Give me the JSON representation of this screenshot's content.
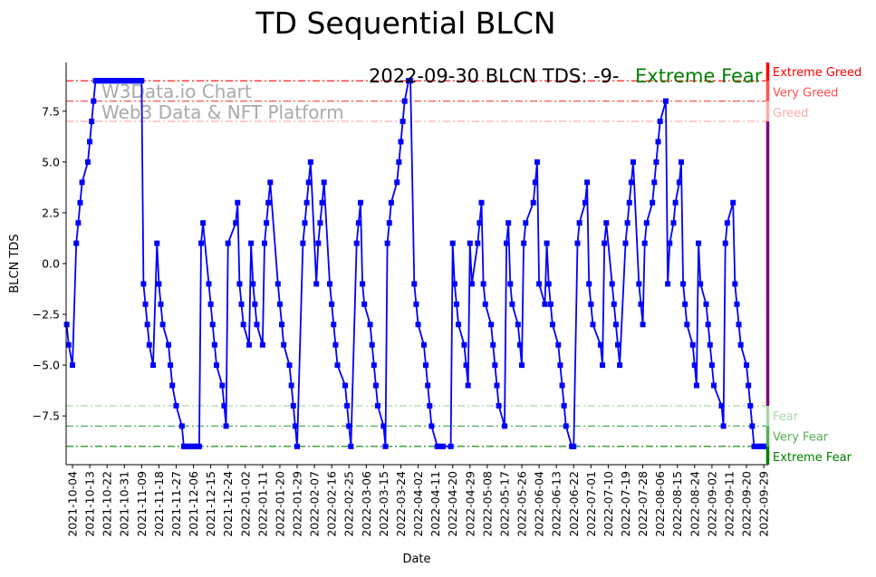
{
  "chart_data": {
    "type": "line",
    "title": "TD Sequential BLCN",
    "xlabel": "Date",
    "ylabel": "BLCN TDS",
    "x_unit": "days since 2021-10-04",
    "xlim": [
      -3.3,
      362.3
    ],
    "ylim": [
      -9.9,
      9.9
    ],
    "series_color": "#0000ff",
    "annotation": "2022-09-30 BLCN TDS: -9-",
    "annotation_status": "Extreme Fear",
    "annotation_status_color": "#008000",
    "watermark": [
      "W3Data.io Chart",
      "Web3 Data & NFT Platform"
    ],
    "y_ticks": [
      -7.5,
      -5.0,
      -2.5,
      0.0,
      2.5,
      5.0,
      7.5
    ],
    "y_tick_labels": [
      "−7.5",
      "−5.0",
      "−2.5",
      "0.0",
      "2.5",
      "5.0",
      "7.5"
    ],
    "x_ticks": [
      0,
      9,
      18,
      27,
      36,
      45,
      54,
      63,
      72,
      81,
      90,
      99,
      108,
      117,
      126,
      135,
      144,
      153,
      162,
      171,
      180,
      189,
      198,
      207,
      216,
      225,
      234,
      243,
      252,
      261,
      270,
      279,
      288,
      297,
      306,
      315,
      324,
      333,
      342,
      351,
      360
    ],
    "x_tick_labels": [
      "2021-10-04",
      "2021-10-13",
      "2021-10-22",
      "2021-10-31",
      "2021-11-09",
      "2021-11-18",
      "2021-11-27",
      "2021-12-06",
      "2021-12-15",
      "2021-12-24",
      "2022-01-02",
      "2022-01-11",
      "2022-01-20",
      "2022-01-29",
      "2022-02-07",
      "2022-02-16",
      "2022-02-25",
      "2022-03-06",
      "2022-03-15",
      "2022-03-24",
      "2022-04-02",
      "2022-04-11",
      "2022-04-20",
      "2022-04-29",
      "2022-05-08",
      "2022-05-17",
      "2022-05-26",
      "2022-06-04",
      "2022-06-13",
      "2022-06-22",
      "2022-07-01",
      "2022-07-10",
      "2022-07-19",
      "2022-07-28",
      "2022-08-06",
      "2022-08-15",
      "2022-08-24",
      "2022-09-02",
      "2022-09-11",
      "2022-09-20",
      "2022-09-29"
    ],
    "levels": [
      {
        "value": 9,
        "label": "Extreme Greed",
        "color": "#ff0000"
      },
      {
        "value": 8,
        "label": "Very Greed",
        "color": "#ff5050"
      },
      {
        "value": 7,
        "label": "Greed",
        "color": "#ffaaaa"
      },
      {
        "value": -7,
        "label": "Fear",
        "color": "#a8d8a8"
      },
      {
        "value": -8,
        "label": "Very Fear",
        "color": "#55b055"
      },
      {
        "value": -9,
        "label": "Extreme Fear",
        "color": "#008000"
      }
    ],
    "neutral_color": "#800080",
    "points": [
      [
        -3,
        -3
      ],
      [
        -2,
        -4
      ],
      [
        0,
        -5
      ],
      [
        2,
        1
      ],
      [
        3,
        2
      ],
      [
        4,
        3
      ],
      [
        5,
        4
      ],
      [
        8,
        5
      ],
      [
        9,
        6
      ],
      [
        10,
        7
      ],
      [
        11,
        8
      ],
      [
        12,
        9
      ],
      [
        13,
        9
      ],
      [
        14,
        9
      ],
      [
        15,
        9
      ],
      [
        16,
        9
      ],
      [
        17,
        9
      ],
      [
        18,
        9
      ],
      [
        19,
        9
      ],
      [
        20,
        9
      ],
      [
        21,
        9
      ],
      [
        22,
        9
      ],
      [
        23,
        9
      ],
      [
        24,
        9
      ],
      [
        25,
        9
      ],
      [
        26,
        9
      ],
      [
        27,
        9
      ],
      [
        28,
        9
      ],
      [
        29,
        9
      ],
      [
        30,
        9
      ],
      [
        31,
        9
      ],
      [
        32,
        9
      ],
      [
        33,
        9
      ],
      [
        34,
        9
      ],
      [
        35,
        9
      ],
      [
        36,
        9
      ],
      [
        37,
        -1
      ],
      [
        38,
        -2
      ],
      [
        39,
        -3
      ],
      [
        40,
        -4
      ],
      [
        42,
        -5
      ],
      [
        44,
        1
      ],
      [
        45,
        -1
      ],
      [
        46,
        -2
      ],
      [
        47,
        -3
      ],
      [
        50,
        -4
      ],
      [
        51,
        -5
      ],
      [
        52,
        -6
      ],
      [
        54,
        -7
      ],
      [
        57,
        -8
      ],
      [
        58,
        -9
      ],
      [
        59,
        -9
      ],
      [
        60,
        -9
      ],
      [
        61,
        -9
      ],
      [
        62,
        -9
      ],
      [
        63,
        -9
      ],
      [
        64,
        -9
      ],
      [
        65,
        -9
      ],
      [
        66,
        -9
      ],
      [
        67,
        1
      ],
      [
        68,
        2
      ],
      [
        71,
        -1
      ],
      [
        72,
        -2
      ],
      [
        73,
        -3
      ],
      [
        74,
        -4
      ],
      [
        75,
        -5
      ],
      [
        78,
        -6
      ],
      [
        79,
        -7
      ],
      [
        80,
        -8
      ],
      [
        81,
        1
      ],
      [
        85,
        2
      ],
      [
        86,
        3
      ],
      [
        87,
        -1
      ],
      [
        88,
        -2
      ],
      [
        89,
        -3
      ],
      [
        92,
        -4
      ],
      [
        93,
        1
      ],
      [
        94,
        -1
      ],
      [
        95,
        -2
      ],
      [
        96,
        -3
      ],
      [
        99,
        -4
      ],
      [
        100,
        1
      ],
      [
        101,
        2
      ],
      [
        102,
        3
      ],
      [
        103,
        4
      ],
      [
        107,
        -1
      ],
      [
        108,
        -2
      ],
      [
        109,
        -3
      ],
      [
        110,
        -4
      ],
      [
        113,
        -5
      ],
      [
        114,
        -6
      ],
      [
        115,
        -7
      ],
      [
        116,
        -8
      ],
      [
        117,
        -9
      ],
      [
        120,
        1
      ],
      [
        121,
        2
      ],
      [
        122,
        3
      ],
      [
        123,
        4
      ],
      [
        124,
        5
      ],
      [
        127,
        -1
      ],
      [
        128,
        1
      ],
      [
        129,
        2
      ],
      [
        130,
        3
      ],
      [
        131,
        4
      ],
      [
        134,
        -1
      ],
      [
        135,
        -2
      ],
      [
        136,
        -3
      ],
      [
        137,
        -4
      ],
      [
        138,
        -5
      ],
      [
        142,
        -6
      ],
      [
        143,
        -7
      ],
      [
        144,
        -8
      ],
      [
        145,
        -9
      ],
      [
        148,
        1
      ],
      [
        149,
        2
      ],
      [
        150,
        3
      ],
      [
        151,
        -1
      ],
      [
        152,
        -2
      ],
      [
        155,
        -3
      ],
      [
        156,
        -4
      ],
      [
        157,
        -5
      ],
      [
        158,
        -6
      ],
      [
        159,
        -7
      ],
      [
        162,
        -8
      ],
      [
        163,
        -9
      ],
      [
        164,
        1
      ],
      [
        165,
        2
      ],
      [
        166,
        3
      ],
      [
        169,
        4
      ],
      [
        170,
        5
      ],
      [
        171,
        6
      ],
      [
        172,
        7
      ],
      [
        173,
        8
      ],
      [
        175,
        9
      ],
      [
        176,
        9
      ],
      [
        178,
        -1
      ],
      [
        179,
        -2
      ],
      [
        180,
        -3
      ],
      [
        183,
        -4
      ],
      [
        184,
        -5
      ],
      [
        185,
        -6
      ],
      [
        186,
        -7
      ],
      [
        187,
        -8
      ],
      [
        190,
        -9
      ],
      [
        191,
        -9
      ],
      [
        192,
        -9
      ],
      [
        193,
        -9
      ],
      [
        197,
        -9
      ],
      [
        198,
        1
      ],
      [
        199,
        -1
      ],
      [
        200,
        -2
      ],
      [
        201,
        -3
      ],
      [
        204,
        -4
      ],
      [
        205,
        -5
      ],
      [
        206,
        -6
      ],
      [
        207,
        1
      ],
      [
        208,
        -1
      ],
      [
        211,
        1
      ],
      [
        212,
        2
      ],
      [
        213,
        3
      ],
      [
        214,
        -1
      ],
      [
        215,
        -2
      ],
      [
        218,
        -3
      ],
      [
        219,
        -4
      ],
      [
        220,
        -5
      ],
      [
        221,
        -6
      ],
      [
        222,
        -7
      ],
      [
        225,
        -8
      ],
      [
        226,
        1
      ],
      [
        227,
        2
      ],
      [
        228,
        -1
      ],
      [
        229,
        -2
      ],
      [
        232,
        -3
      ],
      [
        233,
        -4
      ],
      [
        234,
        -5
      ],
      [
        235,
        1
      ],
      [
        236,
        2
      ],
      [
        240,
        3
      ],
      [
        241,
        4
      ],
      [
        242,
        5
      ],
      [
        243,
        -1
      ],
      [
        246,
        -2
      ],
      [
        247,
        1
      ],
      [
        248,
        -1
      ],
      [
        249,
        -2
      ],
      [
        250,
        -3
      ],
      [
        253,
        -4
      ],
      [
        254,
        -5
      ],
      [
        255,
        -6
      ],
      [
        256,
        -7
      ],
      [
        257,
        -8
      ],
      [
        260,
        -9
      ],
      [
        261,
        -9
      ],
      [
        263,
        1
      ],
      [
        264,
        2
      ],
      [
        267,
        3
      ],
      [
        268,
        4
      ],
      [
        269,
        -1
      ],
      [
        270,
        -2
      ],
      [
        271,
        -3
      ],
      [
        275,
        -4
      ],
      [
        276,
        -5
      ],
      [
        277,
        1
      ],
      [
        278,
        2
      ],
      [
        281,
        -1
      ],
      [
        282,
        -2
      ],
      [
        283,
        -3
      ],
      [
        284,
        -4
      ],
      [
        285,
        -5
      ],
      [
        288,
        1
      ],
      [
        289,
        2
      ],
      [
        290,
        3
      ],
      [
        291,
        4
      ],
      [
        292,
        5
      ],
      [
        295,
        -1
      ],
      [
        296,
        -2
      ],
      [
        297,
        -3
      ],
      [
        298,
        1
      ],
      [
        299,
        2
      ],
      [
        302,
        3
      ],
      [
        303,
        4
      ],
      [
        304,
        5
      ],
      [
        305,
        6
      ],
      [
        306,
        7
      ],
      [
        309,
        8
      ],
      [
        310,
        -1
      ],
      [
        311,
        1
      ],
      [
        313,
        2
      ],
      [
        314,
        3
      ],
      [
        316,
        4
      ],
      [
        317,
        5
      ],
      [
        318,
        -1
      ],
      [
        319,
        -2
      ],
      [
        320,
        -3
      ],
      [
        323,
        -4
      ],
      [
        324,
        -5
      ],
      [
        325,
        -6
      ],
      [
        326,
        1
      ],
      [
        327,
        -1
      ],
      [
        330,
        -2
      ],
      [
        331,
        -3
      ],
      [
        332,
        -4
      ],
      [
        333,
        -5
      ],
      [
        334,
        -6
      ],
      [
        338,
        -7
      ],
      [
        339,
        -8
      ],
      [
        340,
        1
      ],
      [
        341,
        2
      ],
      [
        344,
        3
      ],
      [
        345,
        -1
      ],
      [
        346,
        -2
      ],
      [
        347,
        -3
      ],
      [
        348,
        -4
      ],
      [
        351,
        -5
      ],
      [
        352,
        -6
      ],
      [
        353,
        -7
      ],
      [
        354,
        -8
      ],
      [
        355,
        -9
      ],
      [
        356,
        -9
      ],
      [
        357,
        -9
      ],
      [
        358,
        -9
      ],
      [
        359,
        -9
      ],
      [
        360,
        -9
      ],
      [
        361,
        -9
      ]
    ]
  }
}
